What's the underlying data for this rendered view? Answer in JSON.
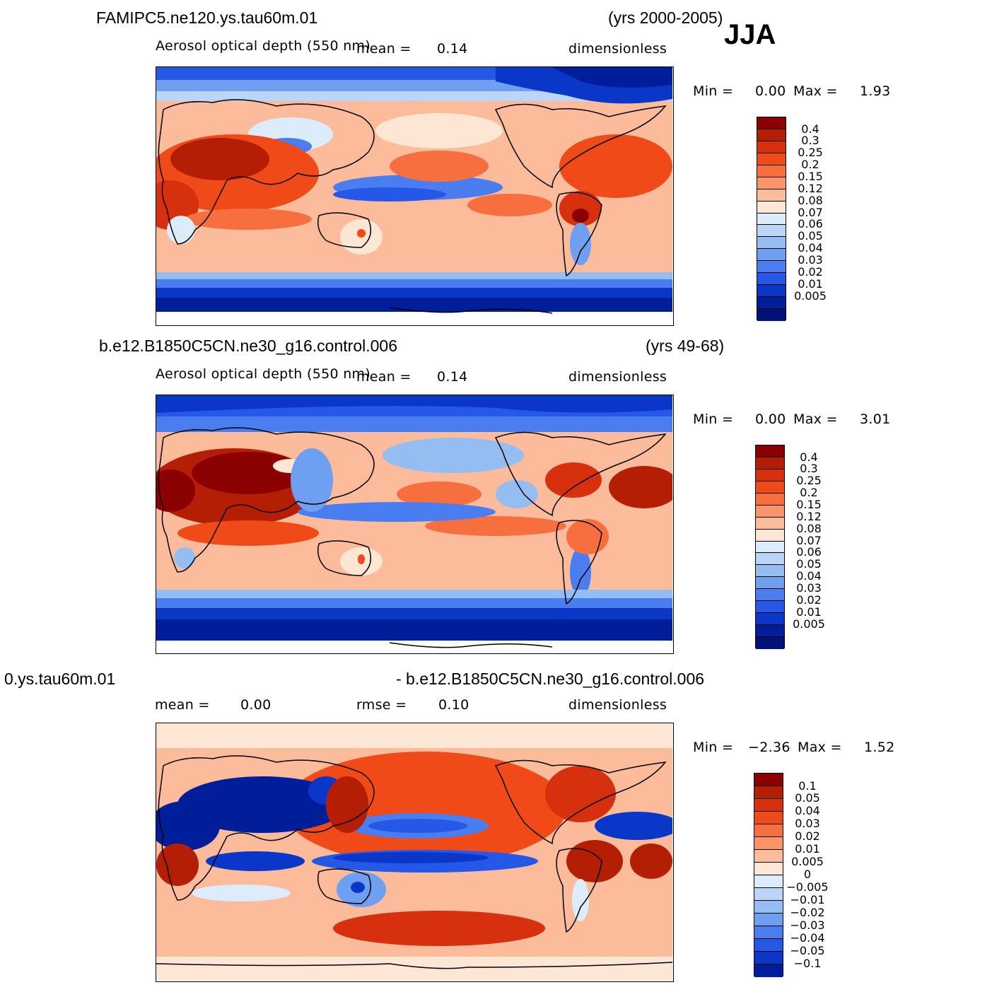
{
  "season": "JJA",
  "panels": [
    {
      "case_label": "FAMIPC5.ne120.ys.tau60m.01",
      "years": "(yrs 2000-2005)",
      "variable": "Aerosol optical depth (550 nm)",
      "stat1_label": "mean =",
      "stat1_value": "0.14",
      "units": "dimensionless",
      "min_label": "Min =",
      "min_value": "0.00",
      "max_label": "Max =",
      "max_value": "1.93"
    },
    {
      "case_label": "b.e12.B1850C5CN.ne30_g16.control.006",
      "years": "(yrs 49-68)",
      "variable": "Aerosol optical depth (550 nm)",
      "stat1_label": "mean =",
      "stat1_value": "0.14",
      "units": "dimensionless",
      "min_label": "Min =",
      "min_value": "0.00",
      "max_label": "Max =",
      "max_value": "3.01"
    },
    {
      "case_label": "0.ys.tau60m.01",
      "years": "- b.e12.B1850C5CN.ne30_g16.control.006",
      "mean_label": "mean =",
      "mean_value": "0.00",
      "rmse_label": "rmse =",
      "rmse_value": "0.10",
      "units": "dimensionless",
      "min_label": "Min =",
      "min_value": "−2.36",
      "max_label": "Max =",
      "max_value": "1.52"
    }
  ],
  "colorbar_field": {
    "colors": [
      "#8b0000",
      "#b41e05",
      "#d7300f",
      "#f04a18",
      "#f86f3f",
      "#fb9468",
      "#fcbb9a",
      "#fde6d3",
      "#dcecfb",
      "#bad5f7",
      "#94bdf2",
      "#6e9ff0",
      "#4a7df0",
      "#2558e6",
      "#0b37c8",
      "#001e9a",
      "#00127a"
    ],
    "labels": [
      "0.4",
      "0.3",
      "0.25",
      "0.2",
      "0.15",
      "0.12",
      "0.08",
      "0.07",
      "0.06",
      "0.05",
      "0.04",
      "0.03",
      "0.02",
      "0.01",
      "0.005"
    ]
  },
  "colorbar_diff": {
    "colors": [
      "#8b0000",
      "#b41e05",
      "#d7300f",
      "#f04a18",
      "#f86f3f",
      "#fb9468",
      "#fcbb9a",
      "#fde6d3",
      "#dcecfb",
      "#bad5f7",
      "#94bdf2",
      "#6e9ff0",
      "#4a7df0",
      "#2558e6",
      "#0b37c8",
      "#001e9a"
    ],
    "labels": [
      "0.1",
      "0.05",
      "0.04",
      "0.03",
      "0.02",
      "0.01",
      "0.005",
      "0",
      "−0.005",
      "−0.01",
      "−0.02",
      "−0.03",
      "−0.04",
      "−0.05",
      "−0.1"
    ]
  }
}
